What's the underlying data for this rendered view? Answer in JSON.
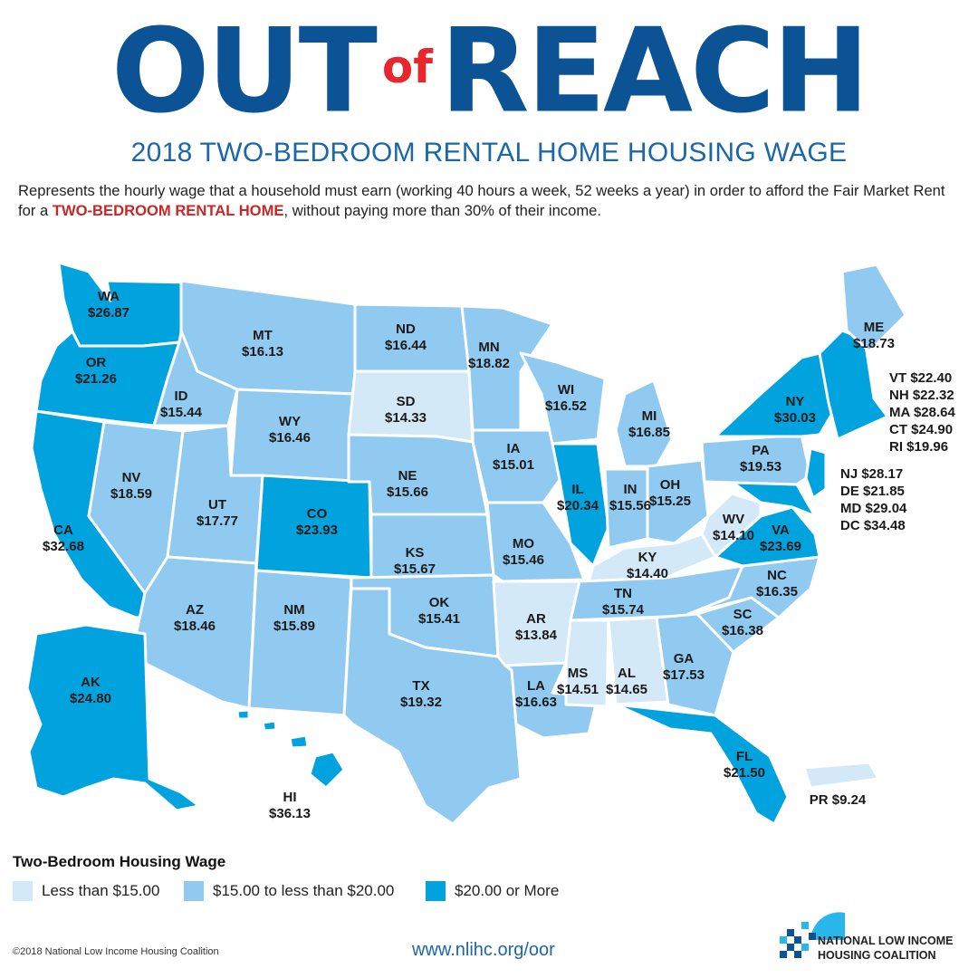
{
  "header": {
    "title_part1": "OUT",
    "title_of": "of",
    "title_part2": "REACH",
    "subtitle": "2018 TWO-BEDROOM RENTAL HOME HOUSING WAGE",
    "desc_part1": "Represents the hourly wage that a household must earn (working 40 hours a week, 52 weeks a year) in order to afford the Fair Market Rent for a ",
    "desc_highlight": "TWO-BEDROOM RENTAL HOME",
    "desc_part2": ", without paying more than 30% of their income."
  },
  "colors": {
    "low": "#d3e9f7",
    "mid": "#90caf0",
    "high": "#00a3de",
    "title_blue": "#0b5394",
    "accent_red": "#e8262d"
  },
  "states": [
    {
      "code": "WA",
      "wage": "$26.87",
      "tier": "high"
    },
    {
      "code": "OR",
      "wage": "$21.26",
      "tier": "high"
    },
    {
      "code": "CA",
      "wage": "$32.68",
      "tier": "high"
    },
    {
      "code": "ID",
      "wage": "$15.44",
      "tier": "mid"
    },
    {
      "code": "NV",
      "wage": "$18.59",
      "tier": "mid"
    },
    {
      "code": "MT",
      "wage": "$16.13",
      "tier": "mid"
    },
    {
      "code": "WY",
      "wage": "$16.46",
      "tier": "mid"
    },
    {
      "code": "UT",
      "wage": "$17.77",
      "tier": "mid"
    },
    {
      "code": "AZ",
      "wage": "$18.46",
      "tier": "mid"
    },
    {
      "code": "CO",
      "wage": "$23.93",
      "tier": "high"
    },
    {
      "code": "NM",
      "wage": "$15.89",
      "tier": "mid"
    },
    {
      "code": "ND",
      "wage": "$16.44",
      "tier": "mid"
    },
    {
      "code": "SD",
      "wage": "$14.33",
      "tier": "low"
    },
    {
      "code": "NE",
      "wage": "$15.66",
      "tier": "mid"
    },
    {
      "code": "KS",
      "wage": "$15.67",
      "tier": "mid"
    },
    {
      "code": "OK",
      "wage": "$15.41",
      "tier": "mid"
    },
    {
      "code": "TX",
      "wage": "$19.32",
      "tier": "mid"
    },
    {
      "code": "MN",
      "wage": "$18.82",
      "tier": "mid"
    },
    {
      "code": "IA",
      "wage": "$15.01",
      "tier": "mid"
    },
    {
      "code": "MO",
      "wage": "$15.46",
      "tier": "mid"
    },
    {
      "code": "AR",
      "wage": "$13.84",
      "tier": "low"
    },
    {
      "code": "LA",
      "wage": "$16.63",
      "tier": "mid"
    },
    {
      "code": "WI",
      "wage": "$16.52",
      "tier": "mid"
    },
    {
      "code": "IL",
      "wage": "$20.34",
      "tier": "high"
    },
    {
      "code": "MI",
      "wage": "$16.85",
      "tier": "mid"
    },
    {
      "code": "IN",
      "wage": "$15.56",
      "tier": "mid"
    },
    {
      "code": "OH",
      "wage": "$15.25",
      "tier": "mid"
    },
    {
      "code": "KY",
      "wage": "$14.40",
      "tier": "low"
    },
    {
      "code": "TN",
      "wage": "$15.74",
      "tier": "mid"
    },
    {
      "code": "MS",
      "wage": "$14.51",
      "tier": "low"
    },
    {
      "code": "AL",
      "wage": "$14.65",
      "tier": "low"
    },
    {
      "code": "GA",
      "wage": "$17.53",
      "tier": "mid"
    },
    {
      "code": "FL",
      "wage": "$21.50",
      "tier": "high"
    },
    {
      "code": "SC",
      "wage": "$16.38",
      "tier": "mid"
    },
    {
      "code": "NC",
      "wage": "$16.35",
      "tier": "mid"
    },
    {
      "code": "VA",
      "wage": "$23.69",
      "tier": "high"
    },
    {
      "code": "WV",
      "wage": "$14.10",
      "tier": "low"
    },
    {
      "code": "PA",
      "wage": "$19.53",
      "tier": "mid"
    },
    {
      "code": "NY",
      "wage": "$30.03",
      "tier": "high"
    },
    {
      "code": "ME",
      "wage": "$18.73",
      "tier": "mid"
    },
    {
      "code": "AK",
      "wage": "$24.80",
      "tier": "high"
    },
    {
      "code": "HI",
      "wage": "$36.13",
      "tier": "high"
    },
    {
      "code": "PR",
      "wage": "$9.24",
      "tier": "low"
    }
  ],
  "callouts_northeast": [
    "VT $22.40",
    "NH $22.32",
    "MA $28.64",
    "CT $24.90",
    "RI $19.96"
  ],
  "callouts_midatlantic": [
    "NJ $28.17",
    "DE $21.85",
    "MD $29.04",
    "DC $34.48"
  ],
  "legend": {
    "title": "Two-Bedroom Housing Wage",
    "items": [
      {
        "label": "Less than $15.00",
        "tier": "low"
      },
      {
        "label": "$15.00 to less than $20.00",
        "tier": "mid"
      },
      {
        "label": "$20.00 or More",
        "tier": "high"
      }
    ]
  },
  "footer": {
    "copyright": "©2018 National Low Income Housing Coalition",
    "url": "www.nlihc.org/oor",
    "org_line1": "NATIONAL LOW INCOME",
    "org_line2": "HOUSING COALITION"
  }
}
